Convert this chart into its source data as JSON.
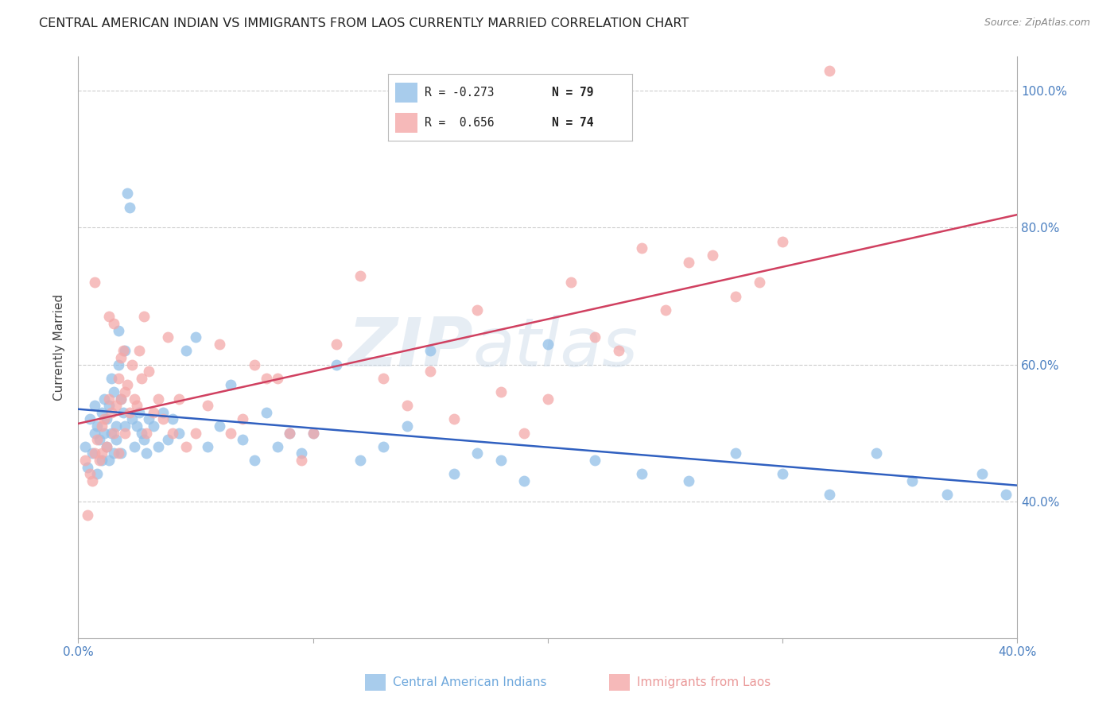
{
  "title": "CENTRAL AMERICAN INDIAN VS IMMIGRANTS FROM LAOS CURRENTLY MARRIED CORRELATION CHART",
  "source": "Source: ZipAtlas.com",
  "xlabel_blue": "Central American Indians",
  "xlabel_pink": "Immigrants from Laos",
  "ylabel": "Currently Married",
  "watermark_zip": "ZIP",
  "watermark_atlas": "atlas",
  "xmin": 0.0,
  "xmax": 0.4,
  "ymin": 0.2,
  "ymax": 1.05,
  "yticks": [
    0.4,
    0.6,
    0.8,
    1.0
  ],
  "ytick_labels": [
    "40.0%",
    "60.0%",
    "80.0%",
    "100.0%"
  ],
  "xticks": [
    0.0,
    0.1,
    0.2,
    0.3,
    0.4
  ],
  "xtick_labels": [
    "0.0%",
    "",
    "",
    "",
    "40.0%"
  ],
  "legend_blue_r": "R = -0.273",
  "legend_blue_n": "N = 79",
  "legend_pink_r": "R =  0.656",
  "legend_pink_n": "N = 74",
  "blue_color": "#92c0e8",
  "pink_color": "#f4a8a8",
  "trendline_blue": "#3060c0",
  "trendline_pink": "#d04060",
  "blue_scatter_x": [
    0.003,
    0.004,
    0.005,
    0.006,
    0.007,
    0.007,
    0.008,
    0.008,
    0.009,
    0.01,
    0.01,
    0.011,
    0.011,
    0.012,
    0.012,
    0.013,
    0.013,
    0.014,
    0.014,
    0.015,
    0.015,
    0.016,
    0.016,
    0.017,
    0.017,
    0.018,
    0.018,
    0.019,
    0.02,
    0.02,
    0.021,
    0.022,
    0.023,
    0.024,
    0.025,
    0.026,
    0.027,
    0.028,
    0.029,
    0.03,
    0.032,
    0.034,
    0.036,
    0.038,
    0.04,
    0.043,
    0.046,
    0.05,
    0.055,
    0.06,
    0.065,
    0.07,
    0.075,
    0.08,
    0.085,
    0.09,
    0.095,
    0.1,
    0.11,
    0.12,
    0.13,
    0.14,
    0.15,
    0.16,
    0.17,
    0.18,
    0.19,
    0.2,
    0.22,
    0.24,
    0.26,
    0.28,
    0.3,
    0.32,
    0.34,
    0.355,
    0.37,
    0.385,
    0.395
  ],
  "blue_scatter_y": [
    0.48,
    0.45,
    0.52,
    0.47,
    0.5,
    0.54,
    0.44,
    0.51,
    0.49,
    0.53,
    0.46,
    0.5,
    0.55,
    0.48,
    0.52,
    0.46,
    0.54,
    0.5,
    0.58,
    0.47,
    0.56,
    0.51,
    0.49,
    0.65,
    0.6,
    0.55,
    0.47,
    0.53,
    0.51,
    0.62,
    0.85,
    0.83,
    0.52,
    0.48,
    0.51,
    0.53,
    0.5,
    0.49,
    0.47,
    0.52,
    0.51,
    0.48,
    0.53,
    0.49,
    0.52,
    0.5,
    0.62,
    0.64,
    0.48,
    0.51,
    0.57,
    0.49,
    0.46,
    0.53,
    0.48,
    0.5,
    0.47,
    0.5,
    0.6,
    0.46,
    0.48,
    0.51,
    0.62,
    0.44,
    0.47,
    0.46,
    0.43,
    0.63,
    0.46,
    0.44,
    0.43,
    0.47,
    0.44,
    0.41,
    0.47,
    0.43,
    0.41,
    0.44,
    0.41
  ],
  "pink_scatter_x": [
    0.003,
    0.004,
    0.005,
    0.006,
    0.007,
    0.007,
    0.008,
    0.009,
    0.01,
    0.01,
    0.011,
    0.012,
    0.013,
    0.013,
    0.014,
    0.015,
    0.015,
    0.016,
    0.017,
    0.017,
    0.018,
    0.018,
    0.019,
    0.02,
    0.02,
    0.021,
    0.022,
    0.023,
    0.024,
    0.025,
    0.026,
    0.027,
    0.028,
    0.029,
    0.03,
    0.032,
    0.034,
    0.036,
    0.038,
    0.04,
    0.043,
    0.046,
    0.05,
    0.055,
    0.06,
    0.065,
    0.07,
    0.075,
    0.08,
    0.085,
    0.09,
    0.095,
    0.1,
    0.11,
    0.12,
    0.13,
    0.14,
    0.15,
    0.16,
    0.17,
    0.18,
    0.19,
    0.2,
    0.21,
    0.22,
    0.23,
    0.24,
    0.25,
    0.26,
    0.27,
    0.28,
    0.29,
    0.3,
    0.32
  ],
  "pink_scatter_y": [
    0.46,
    0.38,
    0.44,
    0.43,
    0.47,
    0.72,
    0.49,
    0.46,
    0.47,
    0.51,
    0.52,
    0.48,
    0.55,
    0.67,
    0.53,
    0.5,
    0.66,
    0.54,
    0.58,
    0.47,
    0.61,
    0.55,
    0.62,
    0.5,
    0.56,
    0.57,
    0.53,
    0.6,
    0.55,
    0.54,
    0.62,
    0.58,
    0.67,
    0.5,
    0.59,
    0.53,
    0.55,
    0.52,
    0.64,
    0.5,
    0.55,
    0.48,
    0.5,
    0.54,
    0.63,
    0.5,
    0.52,
    0.6,
    0.58,
    0.58,
    0.5,
    0.46,
    0.5,
    0.63,
    0.73,
    0.58,
    0.54,
    0.59,
    0.52,
    0.68,
    0.56,
    0.5,
    0.55,
    0.72,
    0.64,
    0.62,
    0.77,
    0.68,
    0.75,
    0.76,
    0.7,
    0.72,
    0.78,
    1.03
  ]
}
